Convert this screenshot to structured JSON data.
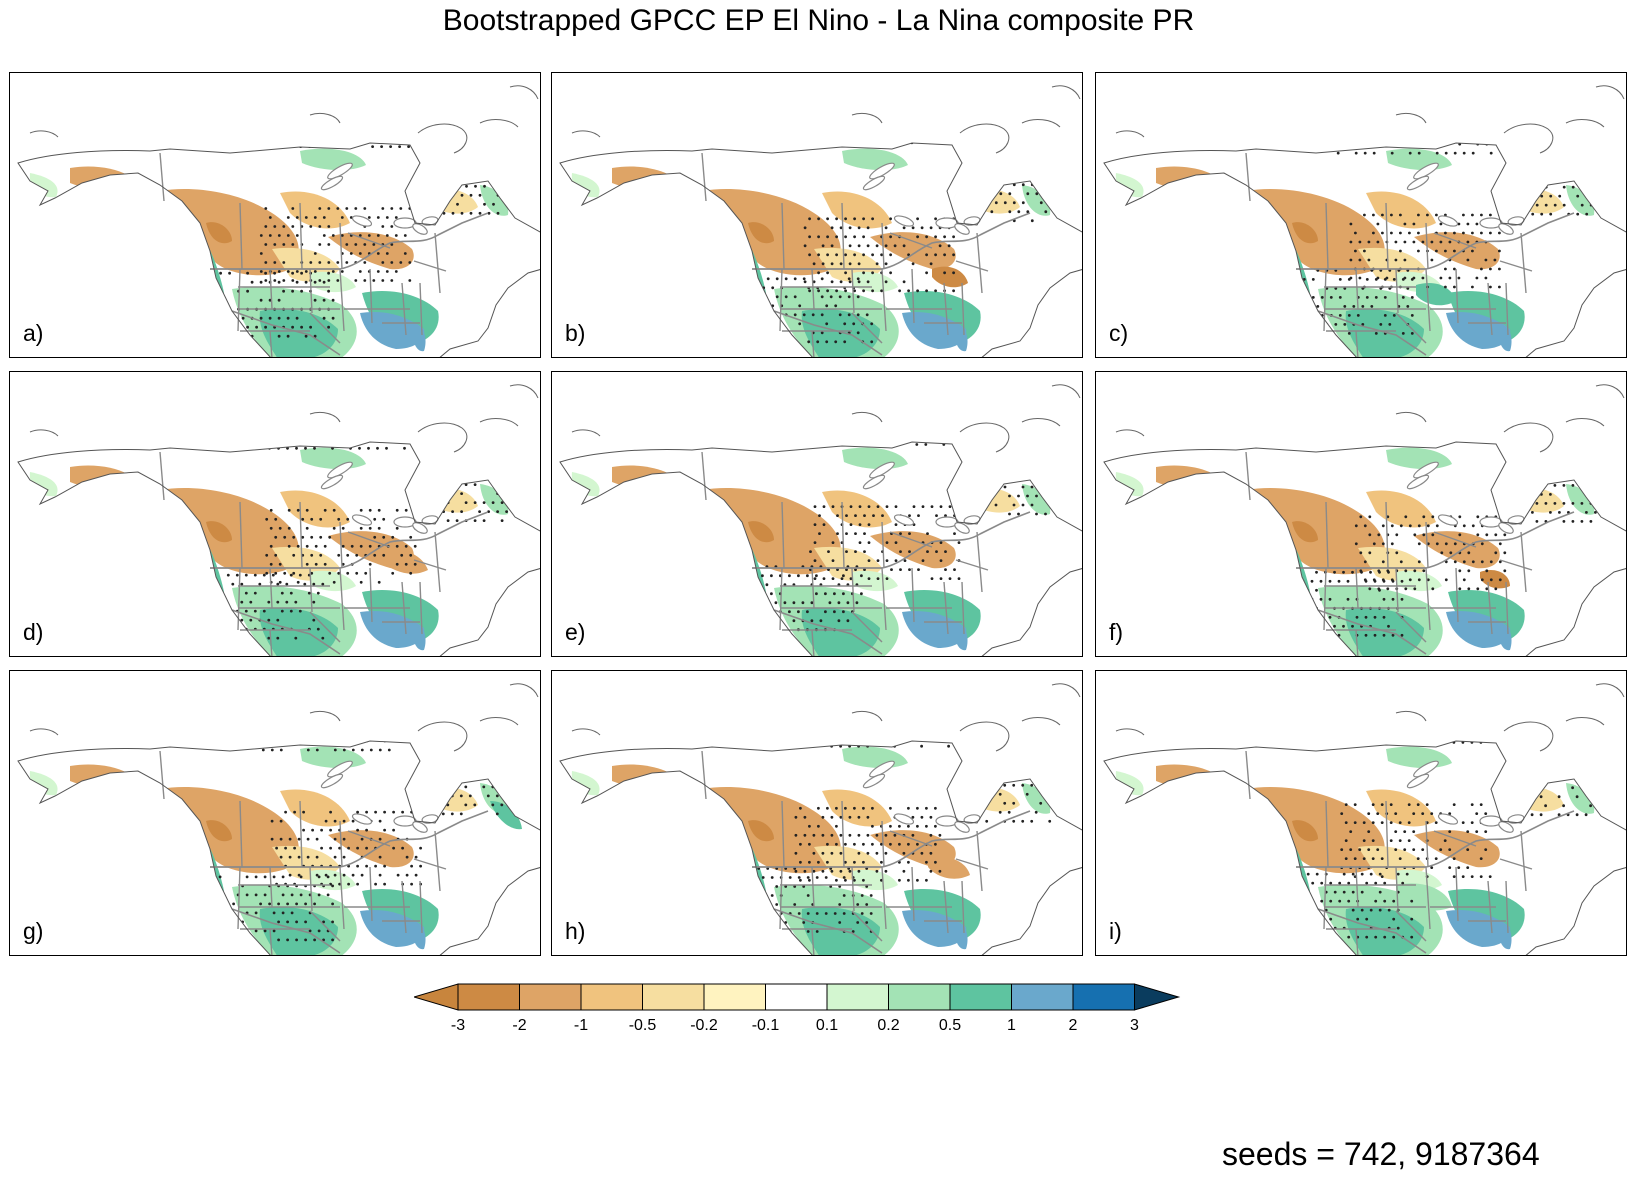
{
  "title": "Bootstrapped GPCC EP El Nino - La Nina composite PR",
  "panels": [
    {
      "label": "a)",
      "variant": 0
    },
    {
      "label": "b)",
      "variant": 1
    },
    {
      "label": "c)",
      "variant": 2
    },
    {
      "label": "d)",
      "variant": 3
    },
    {
      "label": "e)",
      "variant": 4
    },
    {
      "label": "f)",
      "variant": 5
    },
    {
      "label": "g)",
      "variant": 6
    },
    {
      "label": "h)",
      "variant": 7
    },
    {
      "label": "i)",
      "variant": 8
    }
  ],
  "colorbar": {
    "levels": [
      "-3",
      "-2",
      "-1",
      "-0.5",
      "-0.2",
      "-0.1",
      "0.1",
      "0.2",
      "0.5",
      "1",
      "2",
      "3"
    ],
    "colors": [
      "#c8853d",
      "#cd8a44",
      "#dea466",
      "#f0c37e",
      "#f6dea0",
      "#fff3c0",
      "#ffffff",
      "#d3f6d0",
      "#a3e3b5",
      "#5ec4a0",
      "#6aa8cc",
      "#1670b0",
      "#0a3c5e"
    ]
  },
  "colors": {
    "dry_strong": "#cd8a44",
    "dry": "#dea466",
    "dry_light": "#f0c37e",
    "dry_faint": "#f6dea0",
    "wet_faint": "#d3f6d0",
    "wet_light": "#a3e3b5",
    "wet": "#5ec4a0",
    "wet_strong": "#6aa8cc",
    "wet_max": "#1670b0",
    "border": "#8a8a8a"
  },
  "seeds": "seeds = 742, 9187364"
}
